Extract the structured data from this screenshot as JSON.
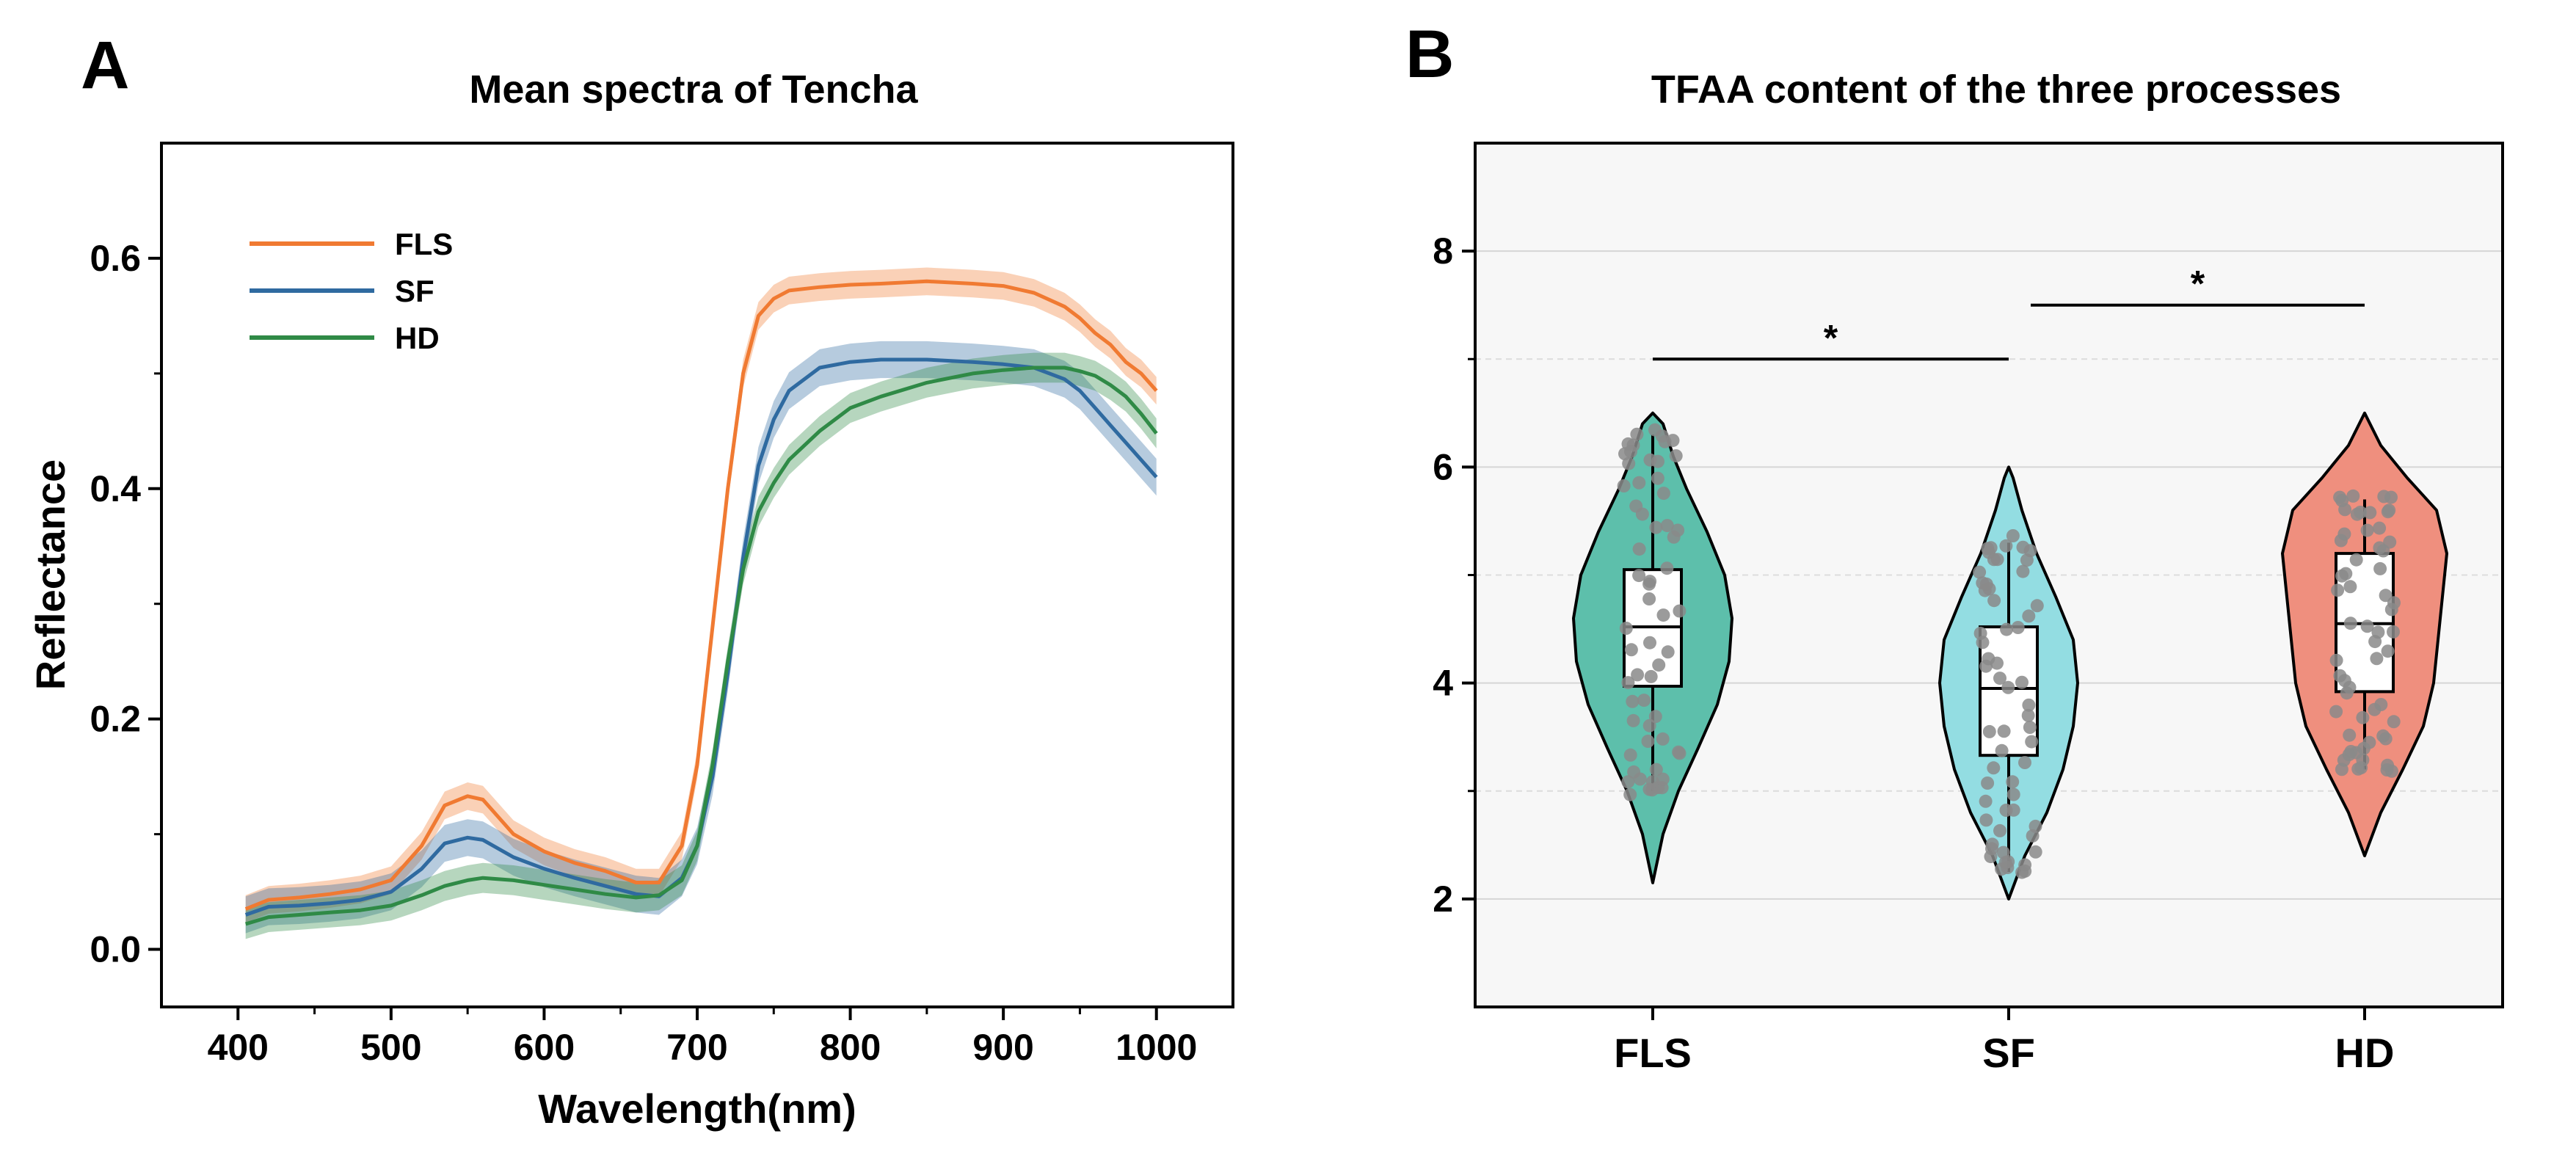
{
  "panels": {
    "a_letter": "A",
    "b_letter": "B"
  },
  "colors": {
    "FLS": "#f07a32",
    "SF": "#2f6aa0",
    "HD": "#2f8a46",
    "violin_FLS": "#5dbfab",
    "violin_SF": "#93dde2",
    "violin_HD": "#ef8f7e",
    "dot": "#8a8a8a",
    "plot_bg_b": "#f7f7f7"
  },
  "chart_data": [
    {
      "type": "line",
      "title": "Mean spectra of Tencha",
      "xlabel": "Wavelength(nm)",
      "ylabel": "Reflectance",
      "xlim": [
        350,
        1050
      ],
      "ylim": [
        -0.05,
        0.7
      ],
      "xticks": [
        "400",
        "500",
        "600",
        "700",
        "800",
        "900",
        "1000"
      ],
      "yticks": [
        "0.0",
        "0.2",
        "0.4",
        "0.6"
      ],
      "x": [
        405,
        420,
        440,
        460,
        480,
        500,
        520,
        535,
        550,
        560,
        580,
        600,
        620,
        640,
        660,
        675,
        690,
        700,
        710,
        720,
        730,
        740,
        750,
        760,
        780,
        800,
        820,
        850,
        880,
        900,
        920,
        940,
        950,
        960,
        970,
        980,
        990,
        1000
      ],
      "series": [
        {
          "name": "FLS",
          "values": [
            0.035,
            0.043,
            0.045,
            0.048,
            0.052,
            0.06,
            0.09,
            0.125,
            0.133,
            0.13,
            0.1,
            0.085,
            0.075,
            0.068,
            0.058,
            0.058,
            0.09,
            0.16,
            0.28,
            0.4,
            0.5,
            0.55,
            0.565,
            0.572,
            0.575,
            0.577,
            0.578,
            0.58,
            0.578,
            0.576,
            0.57,
            0.558,
            0.548,
            0.535,
            0.525,
            0.51,
            0.5,
            0.485
          ],
          "band": 0.012
        },
        {
          "name": "SF",
          "values": [
            0.03,
            0.037,
            0.038,
            0.04,
            0.043,
            0.05,
            0.07,
            0.092,
            0.097,
            0.095,
            0.08,
            0.07,
            0.062,
            0.055,
            0.048,
            0.046,
            0.062,
            0.09,
            0.15,
            0.24,
            0.34,
            0.42,
            0.46,
            0.485,
            0.505,
            0.51,
            0.512,
            0.512,
            0.51,
            0.508,
            0.505,
            0.495,
            0.485,
            0.47,
            0.455,
            0.44,
            0.425,
            0.41
          ],
          "band": 0.016
        },
        {
          "name": "HD",
          "values": [
            0.022,
            0.028,
            0.03,
            0.032,
            0.034,
            0.038,
            0.047,
            0.055,
            0.06,
            0.062,
            0.06,
            0.056,
            0.052,
            0.048,
            0.045,
            0.047,
            0.06,
            0.09,
            0.16,
            0.25,
            0.33,
            0.38,
            0.405,
            0.425,
            0.45,
            0.47,
            0.48,
            0.492,
            0.5,
            0.503,
            0.505,
            0.505,
            0.502,
            0.498,
            0.49,
            0.48,
            0.465,
            0.448
          ],
          "band": 0.013
        }
      ],
      "legend": [
        "FLS",
        "SF",
        "HD"
      ],
      "legend_position": "top-left"
    },
    {
      "type": "violin",
      "title": "TFAA content of the three processes",
      "categories": [
        "FLS",
        "SF",
        "HD"
      ],
      "ylim": [
        1,
        9
      ],
      "yticks": [
        "2",
        "4",
        "6",
        "8"
      ],
      "grid": true,
      "box": [
        {
          "name": "FLS",
          "q1": 3.97,
          "median": 4.52,
          "q3": 5.05,
          "whisker_low": 3.0,
          "whisker_high": 6.3,
          "min": 2.15,
          "max": 6.5
        },
        {
          "name": "SF",
          "q1": 3.33,
          "median": 3.95,
          "q3": 4.52,
          "whisker_low": 2.25,
          "whisker_high": 5.3,
          "min": 2.0,
          "max": 6.0
        },
        {
          "name": "HD",
          "q1": 3.92,
          "median": 4.55,
          "q3": 5.2,
          "whisker_low": 3.2,
          "whisker_high": 5.7,
          "min": 2.4,
          "max": 6.5
        }
      ],
      "significance": [
        {
          "from": "FLS",
          "to": "SF",
          "y": 7.0,
          "label": "*"
        },
        {
          "from": "SF",
          "to": "HD",
          "y": 7.5,
          "label": "*"
        }
      ]
    }
  ]
}
